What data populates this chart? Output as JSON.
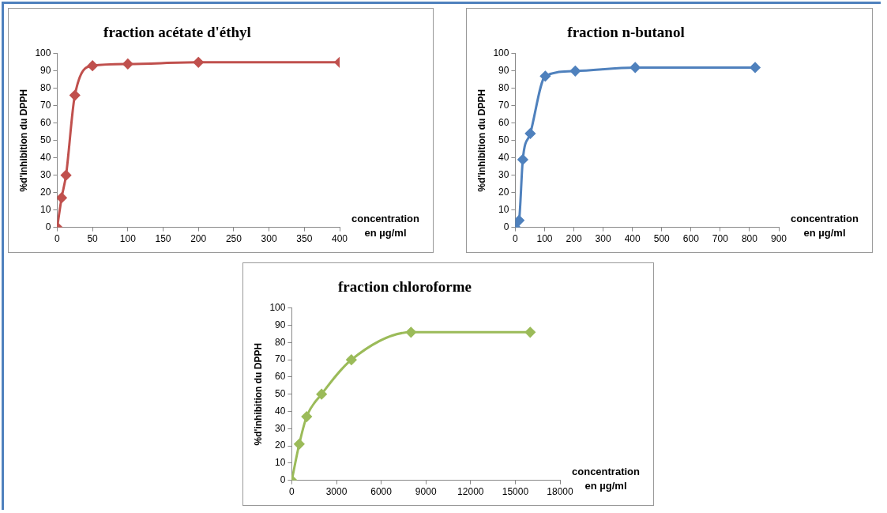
{
  "chart_data": [
    {
      "type": "line",
      "title": "fraction acétate d'éthyl",
      "ylabel": "%d'inhibition du DPPH",
      "xlabel": "concentration\nen µg/ml",
      "x": [
        0,
        6.25,
        12.5,
        25,
        50,
        100,
        200,
        400
      ],
      "series": [
        {
          "color": "#c0504d",
          "values": [
            0,
            17,
            30,
            76,
            93,
            94,
            95,
            95
          ]
        }
      ],
      "xlim": [
        0,
        400
      ],
      "xticks": [
        0,
        50,
        100,
        150,
        200,
        250,
        300,
        350,
        400
      ],
      "ylim": [
        0,
        100
      ],
      "yticks": [
        0,
        10,
        20,
        30,
        40,
        50,
        60,
        70,
        80,
        90,
        100
      ],
      "marker": "diamond",
      "grid": false,
      "legend": false
    },
    {
      "type": "line",
      "title": "fraction n-butanol",
      "ylabel": "%d'inhibition du DPPH",
      "xlabel": "concentration\nen µg/ml",
      "x": [
        0,
        12.8,
        25.6,
        51.2,
        102.4,
        204.8,
        409.6,
        819.2
      ],
      "series": [
        {
          "color": "#4f81bd",
          "values": [
            0,
            4,
            39,
            54,
            87,
            90,
            92,
            92
          ]
        }
      ],
      "xlim": [
        0,
        900
      ],
      "xticks": [
        0,
        100,
        200,
        300,
        400,
        500,
        600,
        700,
        800,
        900
      ],
      "ylim": [
        0,
        100
      ],
      "yticks": [
        0,
        10,
        20,
        30,
        40,
        50,
        60,
        70,
        80,
        90,
        100
      ],
      "marker": "diamond",
      "grid": false,
      "legend": false
    },
    {
      "type": "line",
      "title": "fraction chloroforme",
      "ylabel": "%d'inhibition du DPPH",
      "xlabel": "concentration\nen µg/ml",
      "x": [
        0,
        500,
        1000,
        2000,
        4000,
        8000,
        16000
      ],
      "series": [
        {
          "color": "#9bbb59",
          "values": [
            0,
            21,
            37,
            50,
            70,
            86,
            86
          ]
        }
      ],
      "xlim": [
        0,
        18000
      ],
      "xticks": [
        0,
        3000,
        6000,
        9000,
        12000,
        15000,
        18000
      ],
      "ylim": [
        0,
        100
      ],
      "yticks": [
        0,
        10,
        20,
        30,
        40,
        50,
        60,
        70,
        80,
        90,
        100
      ],
      "marker": "diamond",
      "grid": false,
      "legend": false
    }
  ]
}
